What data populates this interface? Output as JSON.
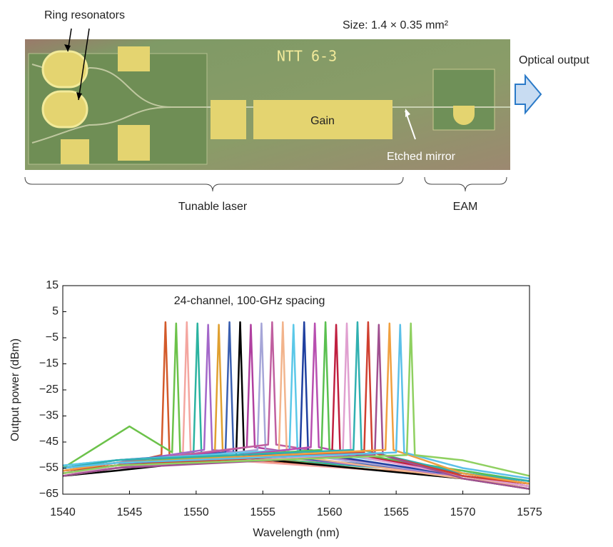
{
  "figure": {
    "ring_label": "Ring resonators",
    "size_label": "Size: 1.4 × 0.35 mm²",
    "chip_marking": "NTT 6-3",
    "gain_label": "Gain",
    "mirror_label": "Etched mirror",
    "output_label": "Optical output",
    "laser_label": "Tunable laser",
    "eam_label": "EAM"
  },
  "chart_data": {
    "type": "line",
    "annotation": "24-channel, 100-GHz spacing",
    "xlabel": "Wavelength (nm)",
    "ylabel": "Output power (dBm)",
    "xlim": [
      1540,
      1575
    ],
    "xticks": [
      1540,
      1545,
      1550,
      1555,
      1560,
      1565,
      1570,
      1575
    ],
    "ylim": [
      -65,
      15
    ],
    "yticks": [
      15,
      5,
      {
        "value": -5,
        "label": "−5"
      },
      {
        "value": -15,
        "label": "−15"
      },
      {
        "value": -25,
        "label": "−25"
      },
      {
        "value": -35,
        "label": "−35"
      },
      {
        "value": -45,
        "label": "−45"
      },
      {
        "value": -55,
        "label": "−55"
      },
      {
        "value": -65,
        "label": "−65"
      }
    ],
    "series": [
      {
        "color": "#d35a2a",
        "x": [
          1540,
          1544,
          1547.4,
          1547.7,
          1548.0,
          1570,
          1575
        ],
        "values": [
          -57,
          -54,
          -50,
          1,
          -50,
          -58,
          -62
        ]
      },
      {
        "color": "#6cc24a",
        "x": [
          1540,
          1545,
          1548.2,
          1548.5,
          1548.8,
          1570,
          1575
        ],
        "values": [
          -55,
          -39,
          -49,
          0.5,
          -49,
          -57,
          -61
        ]
      },
      {
        "color": "#f4a6a0",
        "x": [
          1540,
          1544,
          1549.0,
          1549.3,
          1549.6,
          1570,
          1575
        ],
        "values": [
          -58,
          -55,
          -51,
          1,
          -51,
          -58,
          -62
        ]
      },
      {
        "color": "#2bb3a0",
        "x": [
          1540,
          1544,
          1549.8,
          1550.1,
          1550.4,
          1570,
          1575
        ],
        "values": [
          -54,
          -52,
          -50,
          0.5,
          -50,
          -57,
          -60
        ]
      },
      {
        "color": "#a367c9",
        "x": [
          1540,
          1544,
          1550.6,
          1550.9,
          1551.2,
          1570,
          1575
        ],
        "values": [
          -56,
          -53,
          -48,
          0,
          -48,
          -58,
          -61
        ]
      },
      {
        "color": "#e0a030",
        "x": [
          1540,
          1544,
          1551.4,
          1551.7,
          1552.0,
          1570,
          1575
        ],
        "values": [
          -57,
          -55,
          -50,
          0,
          -50,
          -59,
          -62
        ]
      },
      {
        "color": "#3a5fb0",
        "x": [
          1540,
          1544,
          1552.2,
          1552.5,
          1552.8,
          1570,
          1575
        ],
        "values": [
          -55,
          -52,
          -49,
          1,
          -49,
          -57,
          -61
        ]
      },
      {
        "color": "#000000",
        "x": [
          1540,
          1544,
          1553.0,
          1553.3,
          1553.6,
          1570,
          1575
        ],
        "values": [
          -58,
          -56,
          -51,
          1,
          -51,
          -59,
          -63
        ]
      },
      {
        "color": "#b040a0",
        "x": [
          1540,
          1544,
          1553.8,
          1554.1,
          1554.4,
          1570,
          1575
        ],
        "values": [
          -56,
          -54,
          -47,
          0,
          -47,
          -58,
          -62
        ]
      },
      {
        "color": "#a6a6d8",
        "x": [
          1540,
          1544,
          1554.6,
          1554.9,
          1555.2,
          1570,
          1575
        ],
        "values": [
          -57,
          -54,
          -48,
          0.5,
          -48,
          -58,
          -61
        ]
      },
      {
        "color": "#c05fa0",
        "x": [
          1540,
          1544,
          1555.4,
          1555.7,
          1556.0,
          1570,
          1575
        ],
        "values": [
          -55,
          -53,
          -46,
          1,
          -46,
          -57,
          -60
        ]
      },
      {
        "color": "#f2b48c",
        "x": [
          1540,
          1544,
          1556.2,
          1556.5,
          1556.8,
          1570,
          1575
        ],
        "values": [
          -58,
          -55,
          -50,
          1,
          -50,
          -59,
          -62
        ]
      },
      {
        "color": "#5bc8e8",
        "x": [
          1540,
          1544,
          1557.0,
          1557.3,
          1557.6,
          1570,
          1575
        ],
        "values": [
          -54,
          -52,
          -48,
          0,
          -48,
          -56,
          -60
        ]
      },
      {
        "color": "#2040a0",
        "x": [
          1540,
          1544,
          1557.8,
          1558.1,
          1558.4,
          1570,
          1575
        ],
        "values": [
          -56,
          -54,
          -49,
          1,
          -49,
          -58,
          -61
        ]
      },
      {
        "color": "#b84fb0",
        "x": [
          1540,
          1544,
          1558.6,
          1558.9,
          1559.2,
          1570,
          1575
        ],
        "values": [
          -57,
          -55,
          -47,
          0.5,
          -47,
          -58,
          -62
        ]
      },
      {
        "color": "#5ac050",
        "x": [
          1540,
          1544,
          1559.4,
          1559.7,
          1560.0,
          1570,
          1575
        ],
        "values": [
          -55,
          -53,
          -48,
          1,
          -48,
          -56,
          -60
        ]
      },
      {
        "color": "#c02040",
        "x": [
          1540,
          1544,
          1560.2,
          1560.5,
          1560.8,
          1570,
          1575
        ],
        "values": [
          -56,
          -54,
          -49,
          0,
          -49,
          -57,
          -61
        ]
      },
      {
        "color": "#e0a0d0",
        "x": [
          1540,
          1544,
          1561.0,
          1561.3,
          1561.6,
          1570,
          1575
        ],
        "values": [
          -57,
          -55,
          -50,
          0.5,
          -50,
          -58,
          -62
        ]
      },
      {
        "color": "#30b0b0",
        "x": [
          1540,
          1544,
          1561.8,
          1562.1,
          1562.4,
          1570,
          1575
        ],
        "values": [
          -55,
          -52,
          -48,
          1,
          -48,
          -57,
          -60
        ]
      },
      {
        "color": "#d04030",
        "x": [
          1540,
          1544,
          1562.6,
          1562.9,
          1563.2,
          1570,
          1575
        ],
        "values": [
          -56,
          -54,
          -49,
          1,
          -49,
          -58,
          -61
        ]
      },
      {
        "color": "#a05090",
        "x": [
          1540,
          1544,
          1563.4,
          1563.7,
          1564.0,
          1570,
          1575
        ],
        "values": [
          -58,
          -55,
          -50,
          0,
          -50,
          -59,
          -63
        ]
      },
      {
        "color": "#f0a040",
        "x": [
          1540,
          1544,
          1564.2,
          1564.5,
          1564.8,
          1570,
          1575
        ],
        "values": [
          -56,
          -53,
          -48,
          0.5,
          -48,
          -57,
          -61
        ]
      },
      {
        "color": "#5bc0e8",
        "x": [
          1540,
          1544,
          1565.0,
          1565.3,
          1565.6,
          1570,
          1575
        ],
        "values": [
          -55,
          -53,
          -49,
          0,
          -49,
          -55,
          -59
        ]
      },
      {
        "color": "#8fd060",
        "x": [
          1540,
          1544,
          1565.8,
          1566.1,
          1566.4,
          1570,
          1575
        ],
        "values": [
          -57,
          -54,
          -50,
          0.5,
          -50,
          -52,
          -58
        ]
      }
    ]
  }
}
